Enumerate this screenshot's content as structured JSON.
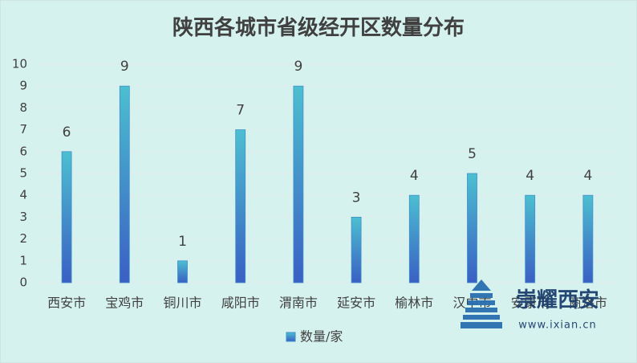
{
  "chart_data": {
    "type": "bar",
    "title": "陕西各城市省级经开区数量分布",
    "categories": [
      "西安市",
      "宝鸡市",
      "铜川市",
      "咸阳市",
      "渭南市",
      "延安市",
      "榆林市",
      "汉中市",
      "安康市",
      "商洛市"
    ],
    "series": [
      {
        "name": "数量/家",
        "color": "#3f8fcb",
        "values": [
          6,
          9,
          1,
          7,
          9,
          3,
          4,
          5,
          4,
          4
        ]
      }
    ],
    "ylim": [
      0,
      10
    ],
    "yticks": [
      0,
      1,
      2,
      3,
      4,
      5,
      6,
      7,
      8,
      9,
      10
    ],
    "grid": true,
    "legend": "bottom"
  },
  "watermark": {
    "brand": "崇耀西安",
    "url": "www.ixian.cn"
  }
}
